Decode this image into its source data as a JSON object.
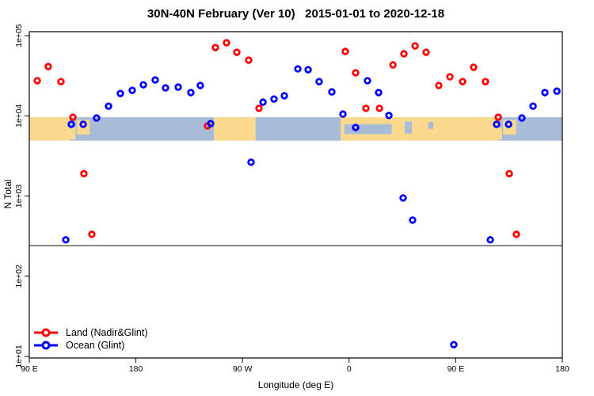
{
  "chart_data": {
    "type": "scatter",
    "title": "30N-40N February (Ver 10)   2015-01-01 to 2020-12-18",
    "xlabel": "Longitude (deg E)",
    "ylabel": "N Total",
    "x_axis": {
      "min": 90,
      "max": 540,
      "ticks": [
        {
          "lon": 90,
          "label": "90 E"
        },
        {
          "lon": 180,
          "label": "180"
        },
        {
          "lon": 270,
          "label": "90 W"
        },
        {
          "lon": 360,
          "label": "0"
        },
        {
          "lon": 450,
          "label": "90 E"
        },
        {
          "lon": 540,
          "label": "180"
        }
      ]
    },
    "y_axis": {
      "scale": "log10",
      "min": 10,
      "max": 100000,
      "ticks": [
        {
          "value": 100000,
          "label": "1e+05"
        },
        {
          "value": 10000,
          "label": "1e+04"
        },
        {
          "value": 1000,
          "label": "1e+03"
        },
        {
          "value": 100,
          "label": "1e+02"
        },
        {
          "value": 10,
          "label": "1e+01"
        }
      ]
    },
    "threshold_line": {
      "value": 240,
      "color": "#3f3f3f"
    },
    "map_band": {
      "value_top": 9600,
      "value_bottom": 4900,
      "land_color": "#FAD98F",
      "ocean_color": "#A8BCD8",
      "segments": [
        {
          "from": 90,
          "to": 124,
          "type": "land"
        },
        {
          "from": 124,
          "to": 246,
          "type": "ocean"
        },
        {
          "from": 246,
          "to": 281,
          "type": "land"
        },
        {
          "from": 281,
          "to": 353,
          "type": "ocean"
        },
        {
          "from": 353,
          "to": 486,
          "type": "land"
        },
        {
          "from": 486,
          "to": 540,
          "type": "ocean"
        }
      ],
      "patches": [
        {
          "from": 124,
          "to": 129,
          "fy": 0.45,
          "fh": 0.5,
          "type": "land"
        },
        {
          "from": 130,
          "to": 141,
          "fy": 0.12,
          "fh": 0.62,
          "type": "land"
        },
        {
          "from": 356,
          "to": 396,
          "fy": 0.3,
          "fh": 0.42,
          "type": "ocean"
        },
        {
          "from": 407,
          "to": 413,
          "fy": 0.18,
          "fh": 0.52,
          "type": "ocean"
        },
        {
          "from": 427,
          "to": 431,
          "fy": 0.2,
          "fh": 0.3,
          "type": "ocean"
        },
        {
          "from": 484,
          "to": 489,
          "fy": 0.45,
          "fh": 0.5,
          "type": "land"
        },
        {
          "from": 490,
          "to": 501,
          "fy": 0.12,
          "fh": 0.62,
          "type": "land"
        }
      ]
    },
    "series": [
      {
        "name": "Land (Nadir&Glint)",
        "color": "#FF0000",
        "marker": "open-circle",
        "points": [
          [
            96.7,
            27400
          ],
          [
            106.0,
            41200
          ],
          [
            116.7,
            26700
          ],
          [
            126.8,
            9600
          ],
          [
            136.1,
            1900
          ],
          [
            142.8,
            333
          ],
          [
            240.4,
            7500
          ],
          [
            247.1,
            71000
          ],
          [
            256.5,
            81500
          ],
          [
            265.2,
            62000
          ],
          [
            275.2,
            49400
          ],
          [
            283.9,
            12400
          ],
          [
            356.8,
            63500
          ],
          [
            365.5,
            34400
          ],
          [
            374.2,
            12400
          ],
          [
            385.6,
            12400
          ],
          [
            397.0,
            43200
          ],
          [
            406.3,
            59300
          ],
          [
            415.7,
            74400
          ],
          [
            425.0,
            62000
          ],
          [
            435.7,
            23900
          ],
          [
            445.1,
            30700
          ],
          [
            455.8,
            26700
          ],
          [
            465.1,
            40300
          ],
          [
            475.1,
            26700
          ],
          [
            485.9,
            9600
          ],
          [
            495.2,
            1900
          ],
          [
            501.2,
            333
          ]
        ]
      },
      {
        "name": "Ocean (Glint)",
        "color": "#0000FF",
        "marker": "open-circle",
        "points": [
          [
            120.8,
            284
          ],
          [
            125.4,
            7840
          ],
          [
            135.5,
            7840
          ],
          [
            146.8,
            9400
          ],
          [
            156.9,
            13200
          ],
          [
            166.9,
            19000
          ],
          [
            176.9,
            20800
          ],
          [
            186.3,
            24400
          ],
          [
            196.3,
            28000
          ],
          [
            205.0,
            22300
          ],
          [
            215.7,
            22800
          ],
          [
            226.4,
            19500
          ],
          [
            234.4,
            23900
          ],
          [
            243.1,
            8000
          ],
          [
            277.2,
            2640
          ],
          [
            287.3,
            14800
          ],
          [
            296.6,
            16200
          ],
          [
            305.3,
            17800
          ],
          [
            316.7,
            38500
          ],
          [
            325.4,
            37600
          ],
          [
            334.7,
            26700
          ],
          [
            345.4,
            19900
          ],
          [
            354.8,
            10500
          ],
          [
            365.5,
            7160
          ],
          [
            375.5,
            27400
          ],
          [
            384.9,
            19500
          ],
          [
            393.6,
            10100
          ],
          [
            405.6,
            947
          ],
          [
            413.6,
            501
          ],
          [
            448.4,
            14
          ],
          [
            479.2,
            284
          ],
          [
            484.5,
            7840
          ],
          [
            494.6,
            7840
          ],
          [
            505.9,
            9400
          ],
          [
            515.3,
            13200
          ],
          [
            525.3,
            19500
          ],
          [
            535.4,
            20300
          ]
        ]
      }
    ],
    "legend": {
      "position": "bottom-left"
    }
  }
}
